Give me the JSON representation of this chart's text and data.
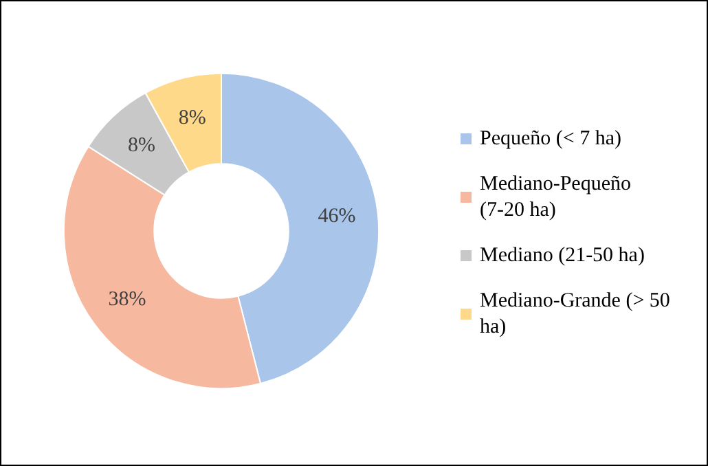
{
  "chart_data": {
    "type": "donut",
    "categories": [
      "Pequeño (< 7 ha)",
      "Mediano-Pequeño (7-20 ha)",
      "Mediano (21-50 ha)",
      "Mediano-Grande (> 50 ha)"
    ],
    "values": [
      46,
      38,
      8,
      8
    ],
    "value_labels": [
      "46%",
      "38%",
      "8%",
      "8%"
    ],
    "colors": [
      "#a9c5ea",
      "#f6b9a0",
      "#c8c8c8",
      "#ffd98a"
    ],
    "legend": "right"
  }
}
